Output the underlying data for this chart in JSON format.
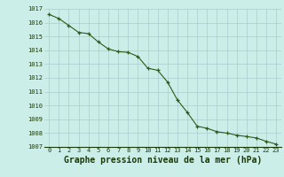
{
  "x": [
    0,
    1,
    2,
    3,
    4,
    5,
    6,
    7,
    8,
    9,
    10,
    11,
    12,
    13,
    14,
    15,
    16,
    17,
    18,
    19,
    20,
    21,
    22,
    23
  ],
  "y": [
    1016.6,
    1016.3,
    1015.8,
    1015.3,
    1015.2,
    1014.6,
    1014.1,
    1013.9,
    1013.85,
    1013.55,
    1012.7,
    1012.55,
    1011.7,
    1010.4,
    1009.5,
    1008.5,
    1008.35,
    1008.1,
    1008.0,
    1007.85,
    1007.75,
    1007.65,
    1007.4,
    1007.2
  ],
  "ylim": [
    1007,
    1017
  ],
  "xlim": [
    -0.5,
    23.5
  ],
  "yticks": [
    1007,
    1008,
    1009,
    1010,
    1011,
    1012,
    1013,
    1014,
    1015,
    1016,
    1017
  ],
  "xticks": [
    0,
    1,
    2,
    3,
    4,
    5,
    6,
    7,
    8,
    9,
    10,
    11,
    12,
    13,
    14,
    15,
    16,
    17,
    18,
    19,
    20,
    21,
    22,
    23
  ],
  "line_color": "#2d5a1b",
  "marker_color": "#2d5a1b",
  "bg_color": "#cceee8",
  "grid_color": "#aacccc",
  "xlabel": "Graphe pression niveau de la mer (hPa)",
  "xlabel_color": "#1a3a0a",
  "tick_color": "#1a3a0a",
  "tick_fontsize": 5.0,
  "xlabel_fontsize": 7.0
}
